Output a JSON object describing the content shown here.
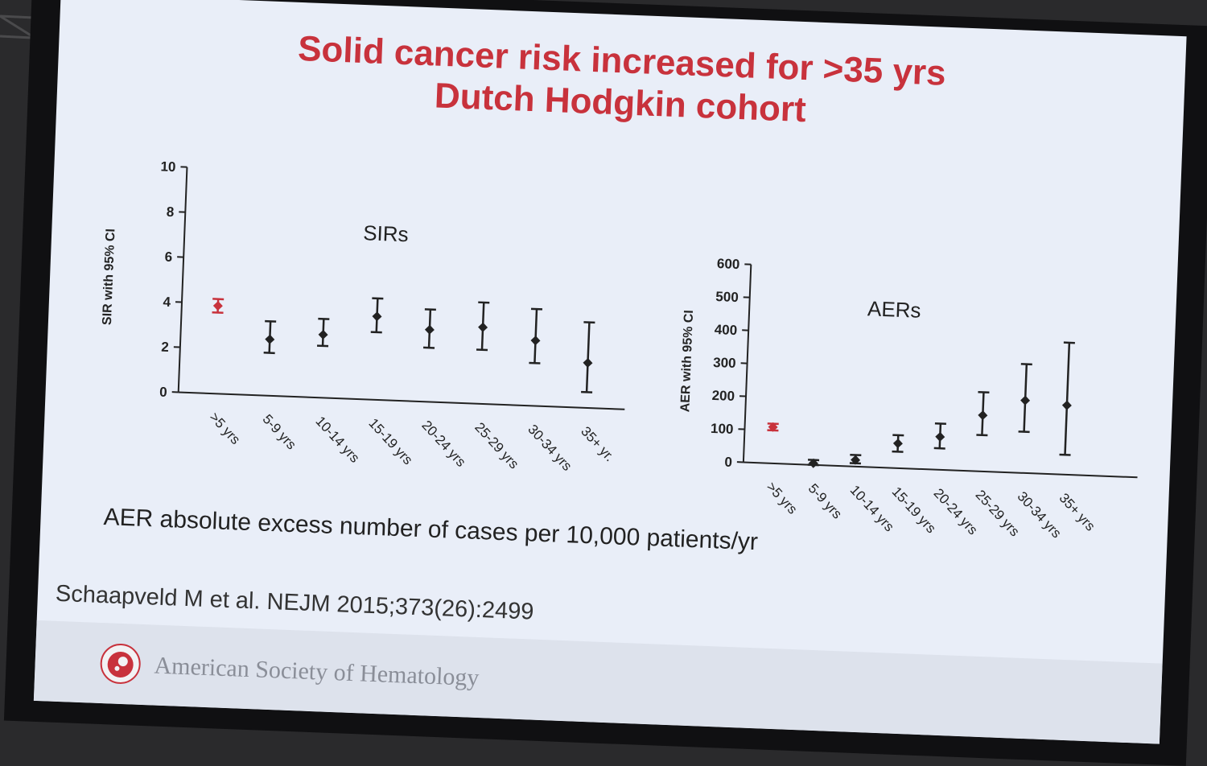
{
  "slide": {
    "title_line1": "Solid cancer risk increased for >35 yrs",
    "title_line2": "Dutch Hodgkin cohort",
    "aer_note": "AER absolute excess number of cases per 10,000 patients/yr",
    "citation": "Schaapveld M et al. NEJM 2015;373(26):2499",
    "society_name": "American Society of Hematology",
    "society_logo_icon": "blood-drop-logo-icon"
  },
  "colors": {
    "title_red": "#c8323c",
    "highlight_red": "#c8323c",
    "marker_black": "#222222",
    "slide_bg": "#e9eef8"
  },
  "chart_data": [
    {
      "type": "scatter",
      "title": "SIRs",
      "ylabel": "SIR with 95% CI",
      "ylim": [
        0,
        10
      ],
      "yticks": [
        0,
        2,
        4,
        6,
        8,
        10
      ],
      "categories": [
        ">5 yrs",
        "5-9 yrs",
        "10-14 yrs",
        "15-19 yrs",
        "20-24 yrs",
        "25-29 yrs",
        "30-34 yrs",
        "35+ yr."
      ],
      "series": [
        {
          "values": [
            3.9,
            2.5,
            2.8,
            3.7,
            3.2,
            3.4,
            2.9,
            2.0
          ],
          "lower": [
            3.6,
            1.9,
            2.3,
            3.0,
            2.4,
            2.4,
            1.9,
            0.7
          ],
          "upper": [
            4.2,
            3.3,
            3.5,
            4.5,
            4.1,
            4.5,
            4.3,
            3.8
          ]
        }
      ],
      "highlight_index": 0,
      "grid": false
    },
    {
      "type": "scatter",
      "title": "AERs",
      "ylabel": "AER with 95% CI",
      "ylim": [
        0,
        600
      ],
      "yticks": [
        0,
        100,
        200,
        300,
        400,
        500,
        600
      ],
      "categories": [
        ">5 yrs",
        "5-9 yrs",
        "10-14 yrs",
        "15-19 yrs",
        "20-24 yrs",
        "25-29 yrs",
        "30-34 yrs",
        "35+ yrs"
      ],
      "series": [
        {
          "values": [
            110,
            5,
            20,
            75,
            100,
            170,
            220,
            210
          ],
          "lower": [
            100,
            0,
            10,
            50,
            65,
            110,
            125,
            60
          ],
          "upper": [
            120,
            15,
            35,
            100,
            140,
            240,
            330,
            400
          ]
        }
      ],
      "highlight_index": 0,
      "grid": false
    }
  ]
}
